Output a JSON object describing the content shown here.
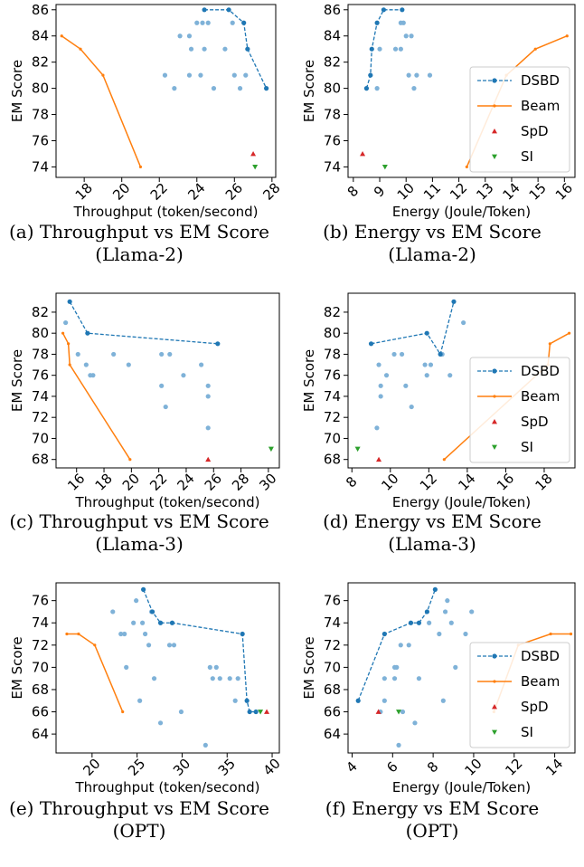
{
  "colors": {
    "dsbd": "#1f77b4",
    "dsbd_scatter": "#7fb2d8",
    "beam": "#ff7f0e",
    "spd": "#d62728",
    "si": "#2ca02c",
    "axis": "#000000"
  },
  "legend_labels": [
    "DSBD",
    "Beam",
    "SpD",
    "SI"
  ],
  "chart_data": [
    {
      "type": "scatter",
      "caption_line1": "(a) Throughput vs EM Score",
      "caption_line2": "(Llama-2)",
      "xlabel": "Throughput (token/second)",
      "ylabel": "EM Score",
      "xlim": [
        16.5,
        28.2
      ],
      "ylim": [
        73.2,
        86.4
      ],
      "xticks": [
        18,
        20,
        22,
        24,
        26,
        28
      ],
      "yticks": [
        74,
        76,
        78,
        80,
        82,
        84,
        86
      ],
      "legend": false,
      "dsbd_scatter": [
        [
          22.3,
          81
        ],
        [
          22.8,
          80
        ],
        [
          23.1,
          84
        ],
        [
          23.6,
          84
        ],
        [
          23.6,
          81
        ],
        [
          23.7,
          83
        ],
        [
          24.0,
          85
        ],
        [
          24.2,
          81
        ],
        [
          24.3,
          85
        ],
        [
          24.4,
          83
        ],
        [
          24.6,
          85
        ],
        [
          24.9,
          80
        ],
        [
          25.5,
          83
        ],
        [
          25.9,
          85
        ],
        [
          26.0,
          81
        ],
        [
          26.3,
          80
        ],
        [
          26.6,
          81
        ]
      ],
      "dsbd_frontier": [
        [
          24.4,
          86
        ],
        [
          25.7,
          86
        ],
        [
          26.5,
          85
        ],
        [
          26.7,
          83
        ],
        [
          27.7,
          80
        ]
      ],
      "beam": [
        [
          16.8,
          84
        ],
        [
          17.8,
          83
        ],
        [
          19.0,
          81
        ],
        [
          21.0,
          74
        ]
      ],
      "spd": [
        [
          27.0,
          75
        ]
      ],
      "si": [
        [
          27.1,
          74
        ]
      ]
    },
    {
      "type": "scatter",
      "caption_line1": "(b) Energy vs EM Score",
      "caption_line2": "(Llama-2)",
      "xlabel": "Energy (Joule/Token)",
      "ylabel": "EM Score",
      "xlim": [
        7.8,
        16.4
      ],
      "ylim": [
        73.2,
        86.4
      ],
      "xticks": [
        8,
        9,
        10,
        11,
        12,
        13,
        14,
        15,
        16
      ],
      "yticks": [
        74,
        76,
        78,
        80,
        82,
        84,
        86
      ],
      "legend": true,
      "dsbd_scatter": [
        [
          8.9,
          80
        ],
        [
          9.0,
          83
        ],
        [
          9.6,
          83
        ],
        [
          9.8,
          83
        ],
        [
          9.8,
          85
        ],
        [
          9.9,
          85
        ],
        [
          10.0,
          84
        ],
        [
          10.2,
          84
        ],
        [
          10.1,
          81
        ],
        [
          10.3,
          80
        ],
        [
          10.4,
          81
        ],
        [
          10.9,
          81
        ]
      ],
      "dsbd_frontier": [
        [
          8.5,
          80
        ],
        [
          8.65,
          81
        ],
        [
          8.7,
          83
        ],
        [
          8.9,
          85
        ],
        [
          9.15,
          86
        ],
        [
          9.85,
          86
        ]
      ],
      "beam": [
        [
          12.3,
          74
        ],
        [
          13.8,
          81
        ],
        [
          14.9,
          83
        ],
        [
          16.1,
          84
        ]
      ],
      "spd": [
        [
          8.35,
          75
        ]
      ],
      "si": [
        [
          9.2,
          74
        ]
      ]
    },
    {
      "type": "scatter",
      "caption_line1": "(c) Throughput vs EM Score",
      "caption_line2": "(Llama-3)",
      "xlabel": "Throughput (token/second)",
      "ylabel": "EM Score",
      "xlim": [
        14.5,
        30.8
      ],
      "ylim": [
        67.2,
        83.8
      ],
      "xticks": [
        16,
        18,
        20,
        22,
        24,
        26,
        28,
        30
      ],
      "yticks": [
        68,
        70,
        72,
        74,
        76,
        78,
        80,
        82
      ],
      "legend": false,
      "dsbd_scatter": [
        [
          15.2,
          81
        ],
        [
          16.1,
          78
        ],
        [
          16.7,
          77
        ],
        [
          17.0,
          76
        ],
        [
          17.2,
          76
        ],
        [
          18.7,
          78
        ],
        [
          19.8,
          77
        ],
        [
          22.2,
          78
        ],
        [
          22.2,
          75
        ],
        [
          22.5,
          73
        ],
        [
          22.8,
          78
        ],
        [
          23.8,
          76
        ],
        [
          25.1,
          77
        ],
        [
          25.6,
          75
        ],
        [
          25.6,
          74
        ],
        [
          25.6,
          71
        ]
      ],
      "dsbd_frontier": [
        [
          15.5,
          83
        ],
        [
          16.8,
          80
        ],
        [
          26.3,
          79
        ]
      ],
      "beam": [
        [
          15.0,
          80
        ],
        [
          15.4,
          79
        ],
        [
          15.5,
          77
        ],
        [
          19.9,
          68
        ]
      ],
      "spd": [
        [
          25.6,
          68
        ]
      ],
      "si": [
        [
          30.2,
          69
        ]
      ]
    },
    {
      "type": "scatter",
      "caption_line1": "(d) Energy vs EM Score",
      "caption_line2": "(Llama-3)",
      "xlabel": "Energy (Joule/Token)",
      "ylabel": "EM Score",
      "xlim": [
        7.8,
        19.6
      ],
      "ylim": [
        67.2,
        83.8
      ],
      "xticks": [
        8,
        10,
        12,
        14,
        16,
        18
      ],
      "yticks": [
        68,
        70,
        72,
        74,
        76,
        78,
        80,
        82
      ],
      "legend": true,
      "dsbd_scatter": [
        [
          9.3,
          71
        ],
        [
          9.4,
          77
        ],
        [
          9.5,
          75
        ],
        [
          9.5,
          74
        ],
        [
          9.8,
          76
        ],
        [
          10.2,
          78
        ],
        [
          10.6,
          78
        ],
        [
          10.8,
          75
        ],
        [
          11.1,
          73
        ],
        [
          11.8,
          77
        ],
        [
          11.9,
          76
        ],
        [
          12.1,
          77
        ],
        [
          12.7,
          78
        ],
        [
          13.1,
          76
        ],
        [
          13.8,
          81
        ]
      ],
      "dsbd_frontier": [
        [
          9.0,
          79
        ],
        [
          11.9,
          80
        ],
        [
          12.6,
          78
        ],
        [
          13.3,
          83
        ]
      ],
      "beam": [
        [
          12.8,
          68
        ],
        [
          18.2,
          77
        ],
        [
          18.3,
          79
        ],
        [
          19.3,
          80
        ]
      ],
      "spd": [
        [
          9.4,
          68
        ]
      ],
      "si": [
        [
          8.3,
          69
        ]
      ]
    },
    {
      "type": "scatter",
      "caption_line1": "(e) Throughput vs EM Score",
      "caption_line2": "(OPT)",
      "xlabel": "Throughput (token/second)",
      "ylabel": "EM Score",
      "xlim": [
        16.0,
        40.8
      ],
      "ylim": [
        62.3,
        77.6
      ],
      "xticks": [
        20,
        25,
        30,
        35,
        40
      ],
      "yticks": [
        64,
        66,
        68,
        70,
        72,
        74,
        76
      ],
      "legend": false,
      "dsbd_scatter": [
        [
          22.3,
          75
        ],
        [
          23.2,
          73
        ],
        [
          23.6,
          73
        ],
        [
          23.8,
          70
        ],
        [
          24.6,
          74
        ],
        [
          24.9,
          76
        ],
        [
          25.3,
          67
        ],
        [
          25.6,
          74
        ],
        [
          25.9,
          73
        ],
        [
          26.3,
          72
        ],
        [
          26.6,
          75
        ],
        [
          26.9,
          69
        ],
        [
          27.6,
          65
        ],
        [
          28.6,
          72
        ],
        [
          29.1,
          72
        ],
        [
          29.9,
          66
        ],
        [
          32.6,
          63
        ],
        [
          33.1,
          70
        ],
        [
          33.4,
          69
        ],
        [
          33.8,
          70
        ],
        [
          34.2,
          69
        ],
        [
          35.3,
          69
        ],
        [
          35.9,
          67
        ],
        [
          36.2,
          69
        ]
      ],
      "dsbd_frontier": [
        [
          25.7,
          77
        ],
        [
          26.7,
          75
        ],
        [
          27.6,
          74
        ],
        [
          28.9,
          74
        ],
        [
          36.7,
          73
        ],
        [
          37.2,
          67
        ],
        [
          37.5,
          66
        ],
        [
          38.2,
          66
        ]
      ],
      "beam": [
        [
          17.2,
          73
        ],
        [
          18.5,
          73
        ],
        [
          20.3,
          72
        ],
        [
          23.4,
          66
        ]
      ],
      "spd": [
        [
          39.4,
          66
        ]
      ],
      "si": [
        [
          38.7,
          66
        ]
      ]
    },
    {
      "type": "scatter",
      "caption_line1": "(f) Energy vs EM Score",
      "caption_line2": "(OPT)",
      "xlabel": "Energy (Joule/Token)",
      "ylabel": "EM Score",
      "xlim": [
        3.8,
        15.0
      ],
      "ylim": [
        62.3,
        77.6
      ],
      "xticks": [
        4,
        6,
        8,
        10,
        12,
        14
      ],
      "yticks": [
        64,
        66,
        68,
        70,
        72,
        74,
        76
      ],
      "legend": true,
      "dsbd_scatter": [
        [
          5.4,
          66
        ],
        [
          5.6,
          69
        ],
        [
          5.6,
          67
        ],
        [
          6.1,
          70
        ],
        [
          6.2,
          70
        ],
        [
          6.1,
          69
        ],
        [
          6.3,
          63
        ],
        [
          6.4,
          72
        ],
        [
          6.5,
          66
        ],
        [
          6.8,
          72
        ],
        [
          7.1,
          65
        ],
        [
          7.3,
          69
        ],
        [
          7.8,
          74
        ],
        [
          8.3,
          73
        ],
        [
          8.5,
          67
        ],
        [
          8.6,
          75
        ],
        [
          8.7,
          76
        ],
        [
          8.9,
          74
        ],
        [
          9.1,
          70
        ],
        [
          9.6,
          73
        ],
        [
          9.9,
          75
        ]
      ],
      "dsbd_frontier": [
        [
          4.3,
          67
        ],
        [
          5.6,
          73
        ],
        [
          6.9,
          74
        ],
        [
          7.3,
          74
        ],
        [
          7.7,
          75
        ],
        [
          8.1,
          77
        ]
      ],
      "beam": [
        [
          11.0,
          66
        ],
        [
          12.2,
          72
        ],
        [
          13.8,
          73
        ],
        [
          14.8,
          73
        ]
      ],
      "spd": [
        [
          5.3,
          66
        ]
      ],
      "si": [
        [
          6.3,
          66
        ]
      ]
    }
  ]
}
